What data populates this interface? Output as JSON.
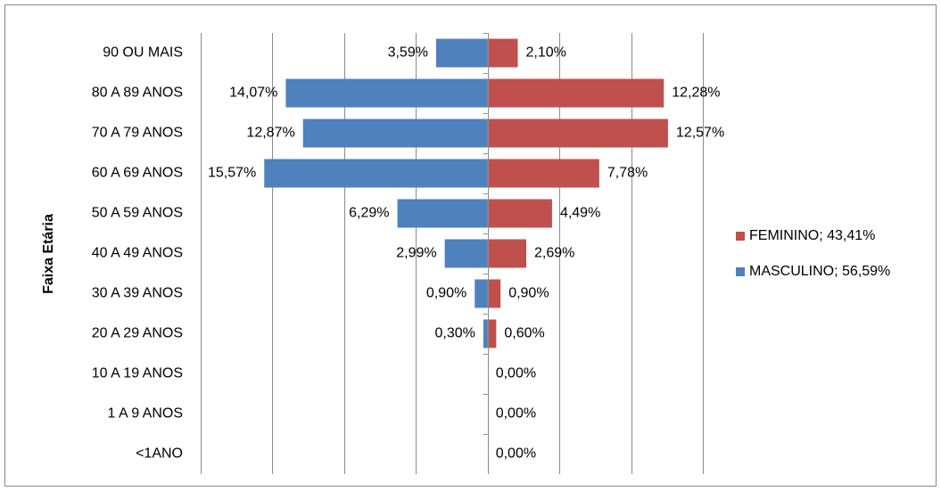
{
  "chart_data": {
    "type": "pyramid",
    "y_axis_label": "Faixa Etária",
    "categories": [
      "90 OU MAIS",
      "80 A 89 ANOS",
      "70 A 79 ANOS",
      "60 A 69 ANOS",
      "50 A 59 ANOS",
      "40 A 49 ANOS",
      "30 A 39 ANOS",
      "20 A 29 ANOS",
      "10 A 19 ANOS",
      "1 A 9 ANOS",
      "<1ANO"
    ],
    "series": [
      {
        "name": "FEMININO; 43,41%",
        "color": "#c0504d",
        "side": "right",
        "values": [
          2.1,
          12.28,
          12.57,
          7.78,
          4.49,
          2.69,
          0.9,
          0.6,
          0.0,
          0.0,
          0.0
        ],
        "value_labels": [
          "2,10%",
          "12,28%",
          "12,57%",
          "7,78%",
          "4,49%",
          "2,69%",
          "0,90%",
          "0,60%",
          "0,00%",
          "0,00%",
          "0,00%"
        ]
      },
      {
        "name": "MASCULINO; 56,59%",
        "color": "#4f81bd",
        "side": "left",
        "values": [
          3.59,
          14.07,
          12.87,
          15.57,
          6.29,
          2.99,
          0.9,
          0.3,
          null,
          null,
          null
        ],
        "value_labels": [
          "3,59%",
          "14,07%",
          "12,87%",
          "15,57%",
          "6,29%",
          "2,99%",
          "0,90%",
          "0,30%",
          null,
          null,
          null
        ]
      }
    ],
    "xlim": [
      -20,
      15
    ],
    "xticks": [
      -20,
      -15,
      -10,
      -5,
      0,
      5,
      10,
      15
    ],
    "grid": true
  }
}
